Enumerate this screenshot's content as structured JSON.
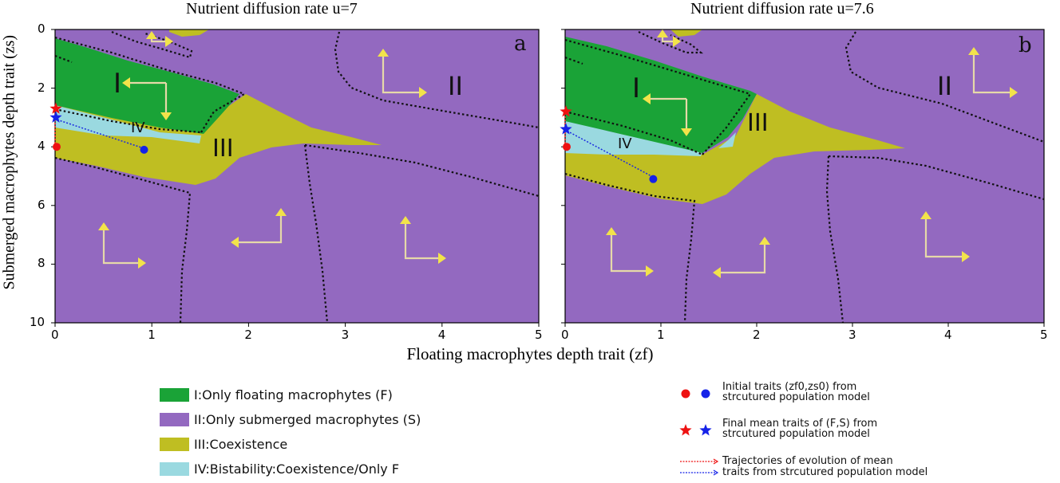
{
  "chart_data": [
    {
      "type": "heatmap",
      "panel_letter": "a",
      "title": "Nutrient diffusion rate u=7",
      "x_ticks": [
        "0",
        "1",
        "2",
        "3",
        "4",
        "5"
      ],
      "y_ticks": [
        "0",
        "2",
        "4",
        "6",
        "8",
        "10"
      ],
      "xlim": [
        0,
        5
      ],
      "ylim": [
        10,
        0
      ],
      "region_labels": [
        "I",
        "II",
        "III",
        "IV"
      ],
      "initial_traits": [
        {
          "zf": 0.0,
          "zs": 4.0,
          "color": "red"
        },
        {
          "zf": 0.92,
          "zs": 4.1,
          "color": "blue"
        }
      ],
      "final_mean_traits": [
        {
          "zf": 0.0,
          "zs": 2.7,
          "color": "red"
        },
        {
          "zf": 0.0,
          "zs": 3.0,
          "color": "blue"
        }
      ],
      "trajectories": [
        {
          "color": "red",
          "points": [
            [
              0.0,
              4.0
            ],
            [
              0.0,
              2.7
            ]
          ]
        },
        {
          "color": "blue",
          "points": [
            [
              0.92,
              4.1
            ],
            [
              0.0,
              3.0
            ]
          ]
        }
      ]
    },
    {
      "type": "heatmap",
      "panel_letter": "b",
      "title": "Nutrient diffusion rate u=7.6",
      "x_ticks": [
        "0",
        "1",
        "2",
        "3",
        "4",
        "5"
      ],
      "y_ticks": [
        "0",
        "2",
        "4",
        "6",
        "8",
        "10"
      ],
      "xlim": [
        0,
        5
      ],
      "ylim": [
        10,
        0
      ],
      "region_labels": [
        "I",
        "II",
        "III",
        "IV"
      ],
      "initial_traits": [
        {
          "zf": 0.0,
          "zs": 4.0,
          "color": "red"
        },
        {
          "zf": 0.92,
          "zs": 5.1,
          "color": "blue"
        }
      ],
      "final_mean_traits": [
        {
          "zf": 0.0,
          "zs": 2.8,
          "color": "red"
        },
        {
          "zf": 0.0,
          "zs": 3.4,
          "color": "blue"
        }
      ],
      "trajectories": [
        {
          "color": "red",
          "points": [
            [
              0.0,
              4.0
            ],
            [
              0.0,
              2.8
            ]
          ]
        },
        {
          "color": "blue",
          "points": [
            [
              0.92,
              5.1
            ],
            [
              0.0,
              3.4
            ]
          ]
        }
      ]
    }
  ],
  "xlabel": "Floating macrophytes depth trait (zf)",
  "ylabel": "Submerged macrophytes depth trait (zs)",
  "colors": {
    "floating": "#1aa337",
    "submerged": "#9369c0",
    "coexistence": "#bfbe22",
    "bistability": "#9ad9e0",
    "arrow": "#f0e070"
  },
  "legend_regions": [
    {
      "label": "I:Only floating macrophytes (F)",
      "color": "#1aa337"
    },
    {
      "label": "II:Only submerged macrophytes (S)",
      "color": "#9369c0"
    },
    {
      "label": "III:Coexistence",
      "color": "#bfbe22"
    },
    {
      "label": "IV:Bistability:Coexistence/Only F",
      "color": "#9ad9e0"
    }
  ],
  "legend_markers": {
    "initial_line1": "Initial traits (zf0,zs0) from",
    "initial_line2": "strcutured population model",
    "final_line1": "Final mean traits of (F,S) from",
    "final_line2": "strcutured population model",
    "traj_line1": "Trajectories of evolution of mean",
    "traj_line2": "traits from strcutured population model"
  }
}
